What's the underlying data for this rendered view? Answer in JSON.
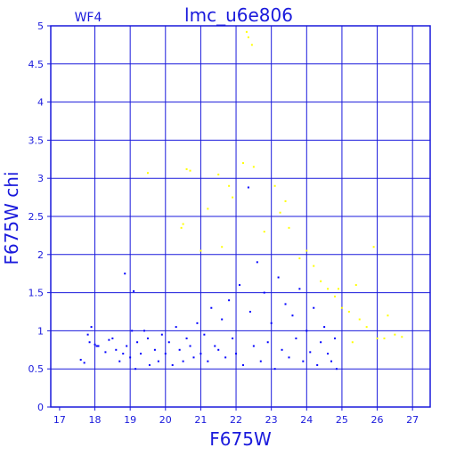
{
  "chart_data": {
    "type": "scatter",
    "title": "lmc_u6e806",
    "corner_label": "WF4",
    "xlabel": "F675W",
    "ylabel": "F675W chi",
    "xlim": [
      16.75,
      27.5
    ],
    "ylim": [
      0,
      5
    ],
    "x_ticks": [
      17,
      18,
      19,
      20,
      21,
      22,
      23,
      24,
      25,
      26,
      27
    ],
    "y_ticks": [
      0,
      0.5,
      1,
      1.5,
      2,
      2.5,
      3,
      3.5,
      4,
      4.5,
      5
    ],
    "grid": true,
    "grid_x": [
      18,
      19,
      20,
      21,
      22,
      23,
      24,
      25,
      26,
      27
    ],
    "grid_y": [
      0.5,
      1,
      1.5,
      2,
      2.5,
      3,
      3.5,
      4,
      4.5
    ],
    "series": [
      {
        "color": "#0000ff",
        "points": [
          [
            17.6,
            0.62
          ],
          [
            17.7,
            0.58
          ],
          [
            17.8,
            0.95
          ],
          [
            17.85,
            0.85
          ],
          [
            17.9,
            1.05
          ],
          [
            18.0,
            0.82
          ],
          [
            18.05,
            0.8
          ],
          [
            18.1,
            0.8
          ],
          [
            18.3,
            0.72
          ],
          [
            18.4,
            0.88
          ],
          [
            18.5,
            0.9
          ],
          [
            18.6,
            0.75
          ],
          [
            18.7,
            0.6
          ],
          [
            18.8,
            0.7
          ],
          [
            18.85,
            1.75
          ],
          [
            18.9,
            0.8
          ],
          [
            19.0,
            0.65
          ],
          [
            19.05,
            1.0
          ],
          [
            19.1,
            1.52
          ],
          [
            19.15,
            0.5
          ],
          [
            19.2,
            0.85
          ],
          [
            19.3,
            0.7
          ],
          [
            19.4,
            1.0
          ],
          [
            19.5,
            0.9
          ],
          [
            19.55,
            0.55
          ],
          [
            19.7,
            0.75
          ],
          [
            19.8,
            0.6
          ],
          [
            19.9,
            0.95
          ],
          [
            20.0,
            0.7
          ],
          [
            20.1,
            0.85
          ],
          [
            20.2,
            0.55
          ],
          [
            20.3,
            1.05
          ],
          [
            20.4,
            0.75
          ],
          [
            20.5,
            0.6
          ],
          [
            20.6,
            0.9
          ],
          [
            20.7,
            0.8
          ],
          [
            20.8,
            0.65
          ],
          [
            20.9,
            1.1
          ],
          [
            21.0,
            0.7
          ],
          [
            21.1,
            0.95
          ],
          [
            21.2,
            0.6
          ],
          [
            21.3,
            1.3
          ],
          [
            21.4,
            0.8
          ],
          [
            21.5,
            0.75
          ],
          [
            21.6,
            1.15
          ],
          [
            21.7,
            0.65
          ],
          [
            21.8,
            1.4
          ],
          [
            21.9,
            0.9
          ],
          [
            22.0,
            0.7
          ],
          [
            22.1,
            1.6
          ],
          [
            22.2,
            0.55
          ],
          [
            22.35,
            2.88
          ],
          [
            22.4,
            1.25
          ],
          [
            22.5,
            0.8
          ],
          [
            22.6,
            1.9
          ],
          [
            22.7,
            0.6
          ],
          [
            22.8,
            1.5
          ],
          [
            22.9,
            0.85
          ],
          [
            23.0,
            1.1
          ],
          [
            23.1,
            0.5
          ],
          [
            23.2,
            1.7
          ],
          [
            23.3,
            0.75
          ],
          [
            23.4,
            1.35
          ],
          [
            23.5,
            0.65
          ],
          [
            23.6,
            1.2
          ],
          [
            23.7,
            0.9
          ],
          [
            23.8,
            1.55
          ],
          [
            23.9,
            0.6
          ],
          [
            24.0,
            1.0
          ],
          [
            24.1,
            0.72
          ],
          [
            24.2,
            1.3
          ],
          [
            24.3,
            0.55
          ],
          [
            24.4,
            0.85
          ],
          [
            24.5,
            1.05
          ],
          [
            24.6,
            0.7
          ],
          [
            24.7,
            0.6
          ],
          [
            24.8,
            0.9
          ],
          [
            24.85,
            0.5
          ]
        ]
      },
      {
        "color": "#ffff00",
        "points": [
          [
            19.5,
            3.07
          ],
          [
            20.6,
            3.12
          ],
          [
            20.7,
            3.1
          ],
          [
            20.5,
            2.4
          ],
          [
            20.45,
            2.35
          ],
          [
            21.2,
            2.6
          ],
          [
            21.5,
            3.05
          ],
          [
            21.8,
            2.9
          ],
          [
            21.9,
            2.75
          ],
          [
            22.2,
            3.2
          ],
          [
            22.3,
            4.92
          ],
          [
            22.35,
            4.85
          ],
          [
            22.45,
            4.75
          ],
          [
            22.5,
            3.15
          ],
          [
            23.1,
            2.9
          ],
          [
            23.25,
            2.55
          ],
          [
            23.4,
            2.7
          ],
          [
            23.5,
            2.35
          ],
          [
            24.0,
            2.05
          ],
          [
            24.2,
            1.85
          ],
          [
            24.4,
            1.65
          ],
          [
            24.6,
            1.55
          ],
          [
            24.8,
            1.45
          ],
          [
            25.0,
            1.3
          ],
          [
            25.2,
            1.25
          ],
          [
            25.4,
            1.6
          ],
          [
            25.5,
            1.15
          ],
          [
            25.7,
            1.05
          ],
          [
            25.9,
            2.1
          ],
          [
            26.0,
            0.9
          ],
          [
            26.3,
            1.2
          ],
          [
            26.5,
            0.95
          ],
          [
            26.7,
            0.92
          ],
          [
            21.6,
            2.1
          ],
          [
            21.0,
            2.05
          ],
          [
            22.8,
            2.3
          ],
          [
            23.8,
            1.95
          ],
          [
            24.9,
            1.55
          ],
          [
            25.3,
            0.85
          ],
          [
            26.2,
            0.9
          ]
        ]
      }
    ]
  }
}
